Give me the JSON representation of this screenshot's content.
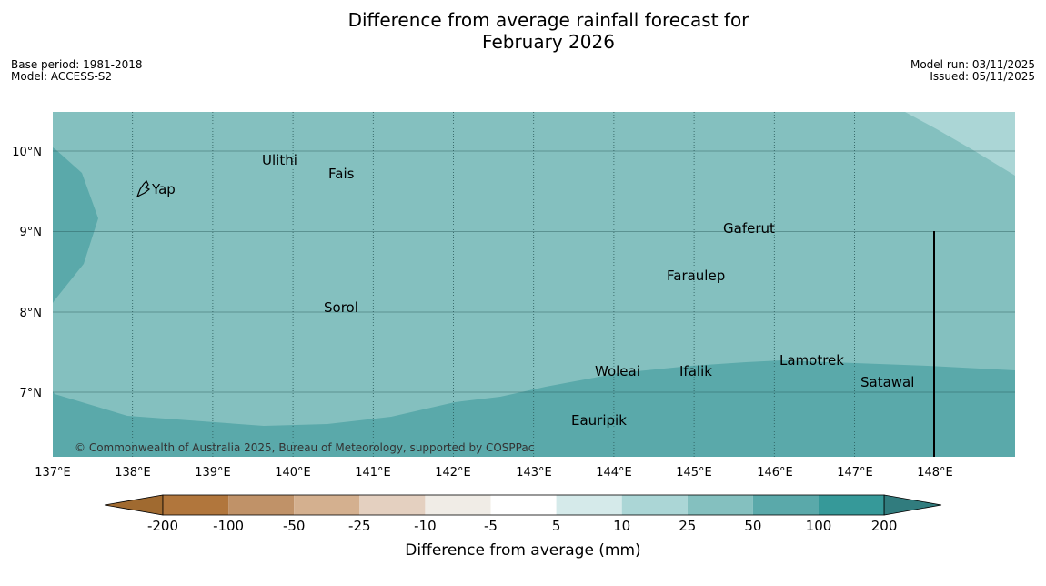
{
  "title_line1": "Difference from average rainfall forecast for",
  "title_line2": "February 2026",
  "base_period": "Base period: 1981-2018",
  "model": "Model: ACCESS-S2",
  "model_run": "Model run: 03/11/2025",
  "issued": "Issued: 05/11/2025",
  "copyright": "© Commonwealth of Australia 2025, Bureau of Meteorology, supported by COSPPac",
  "lon_ticks": [
    "137°E",
    "138°E",
    "139°E",
    "140°E",
    "141°E",
    "142°E",
    "143°E",
    "144°E",
    "145°E",
    "146°E",
    "147°E",
    "148°E"
  ],
  "lat_ticks": [
    "10°N",
    "9°N",
    "8°N",
    "7°N"
  ],
  "places": [
    {
      "name": "Yap"
    },
    {
      "name": "Ulithi"
    },
    {
      "name": "Fais"
    },
    {
      "name": "Gaferut"
    },
    {
      "name": "Faraulep"
    },
    {
      "name": "Sorol"
    },
    {
      "name": "Lamotrek"
    },
    {
      "name": "Woleai"
    },
    {
      "name": "Ifalik"
    },
    {
      "name": "Satawal"
    },
    {
      "name": "Eauripik"
    }
  ],
  "colorbar": {
    "title": "Difference from average (mm)",
    "labels": [
      "-200",
      "-100",
      "-50",
      "-25",
      "-10",
      "-5",
      "5",
      "10",
      "25",
      "50",
      "100",
      "200"
    ],
    "colors": [
      "#a06a30",
      "#b1763c",
      "#c09268",
      "#d4b08f",
      "#e4d0c0",
      "#f0ece6",
      "#ffffff",
      "#d5eaea",
      "#abd6d6",
      "#84c0bf",
      "#5aa9aa",
      "#369999",
      "#317c7e"
    ]
  },
  "map_colors": {
    "base": "#84c0bf",
    "wet": "#5aa9aa",
    "light": "#abd6d6"
  }
}
